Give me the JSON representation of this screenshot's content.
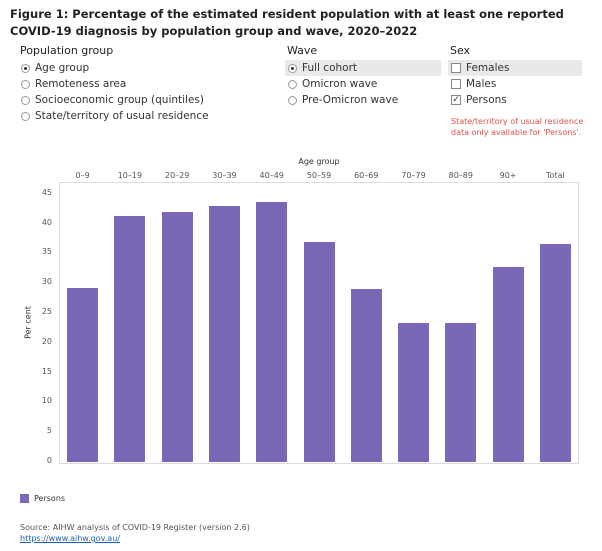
{
  "title": "Figure 1: Percentage of the estimated resident population with at least one reported COVID-19 diagnosis by population group and wave, 2020–2022",
  "filters": {
    "population_group": {
      "heading": "Population group",
      "options": [
        "Age group",
        "Remoteness area",
        "Socioeconomic group (quintiles)",
        "State/territory of usual residence"
      ],
      "selected": "Age group"
    },
    "wave": {
      "heading": "Wave",
      "options": [
        "Full cohort",
        "Omicron wave",
        "Pre-Omicron wave"
      ],
      "selected": "Full cohort"
    },
    "sex": {
      "heading": "Sex",
      "options": [
        "Females",
        "Males",
        "Persons"
      ],
      "checked": [
        "Persons"
      ],
      "highlighted": "Females",
      "note": "State/territory of usual residence data only available for 'Persons'."
    }
  },
  "chart_data": {
    "type": "bar",
    "xlabel": "Age group",
    "ylabel": "Per cent",
    "categories": [
      "0–9",
      "10–19",
      "20–29",
      "30–39",
      "40–49",
      "50–59",
      "60–69",
      "70–79",
      "80–89",
      "90+",
      "Total"
    ],
    "series": [
      {
        "name": "Persons",
        "values": [
          29.2,
          41.3,
          42.0,
          43.0,
          43.7,
          36.9,
          29.1,
          23.4,
          23.4,
          32.7,
          36.6
        ]
      }
    ],
    "ylim": [
      0,
      47
    ],
    "yticks": [
      0,
      5,
      10,
      15,
      20,
      25,
      30,
      35,
      40,
      45
    ],
    "color": "#7a68b6",
    "legend_position": "bottom-left"
  },
  "source": {
    "text": "Source: AIHW analysis of COVID-19 Register (version 2.6)",
    "link": "https://www.aihw.gov.au/"
  }
}
